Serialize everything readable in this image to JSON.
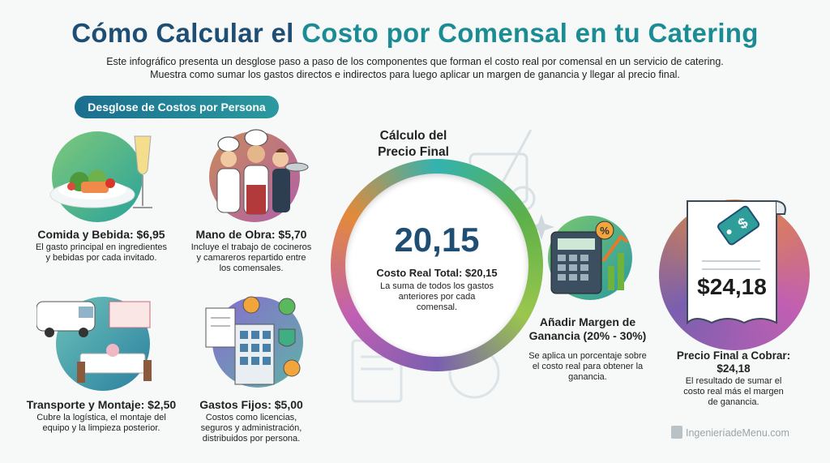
{
  "title": {
    "part1": "Cómo Calcular el ",
    "part2": "Costo por Comensal en tu Catering"
  },
  "subtitle": {
    "line1": "Este infográfico presenta un desglose paso a paso de los componentes que forman el costo real por comensal en un servicio de catering.",
    "line2": "Muestra como sumar los gastos directos e indirectos para luego aplicar un margen de ganancia y llegar al precio final."
  },
  "section_pill": "Desglose de Costos por Persona",
  "items": [
    {
      "title": "Comida y Bebida: $6,95",
      "desc": [
        "El gasto principal en ingredientes",
        "y bebidas por cada invitado."
      ],
      "icon": "salmon-plate-wine-icon"
    },
    {
      "title": "Mano de Obra: $5,70",
      "desc": [
        "Incluye el trabajo de cocineros",
        "y camareros repartido entre",
        "los comensales."
      ],
      "icon": "chefs-waiter-icon"
    },
    {
      "title": "Transporte y Montaje: $2,50",
      "desc": [
        "Cubre la logística, el montaje del",
        "equipo y la limpieza posterior."
      ],
      "icon": "van-banquet-icon"
    },
    {
      "title": "Gastos Fijos: $5,00",
      "desc": [
        "Costos como licencias,",
        "seguros y administración,",
        "distribuidos por persona."
      ],
      "icon": "building-documents-icon"
    }
  ],
  "center": {
    "title": [
      "Cálculo del",
      "Precio Final"
    ],
    "value": "20,15",
    "label": "Costo Real Total: $20,15",
    "desc": [
      "La suma de todos los gastos",
      "anteriores por cada",
      "comensal."
    ]
  },
  "margin": {
    "title": [
      "Añadir Margen de",
      "Ganancia (20% - 30%)"
    ],
    "desc": [
      "Se aplica un porcentaje sobre",
      "el costo real para obtener la",
      "ganancia."
    ],
    "icon": "calculator-growth-icon",
    "badge": "%"
  },
  "final": {
    "price": "$24,18",
    "tag_symbol": "$",
    "title": [
      "Precio Final a Cobrar:",
      "$24,18"
    ],
    "desc": [
      "El resultado de sumar el",
      "costo real más el margen",
      "de ganancia."
    ]
  },
  "logo": {
    "part1": "IngenieríadeMenu",
    "part2": ".com"
  },
  "colors": {
    "dark_blue": "#1f4e74",
    "teal": "#1b8c93",
    "green": "#5cb04a",
    "purple": "#7a5fb0",
    "orange": "#e38a3a"
  }
}
